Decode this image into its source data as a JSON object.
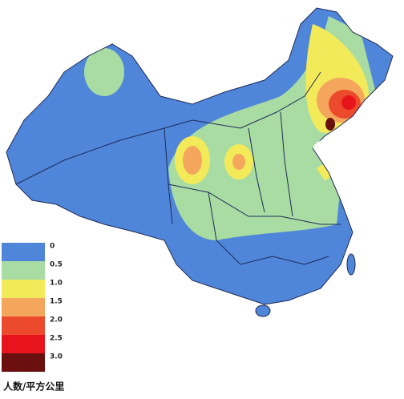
{
  "legend": {
    "title": "人数/平方公里",
    "items": [
      {
        "label": "0",
        "color": "#4f86d9"
      },
      {
        "label": "0.5",
        "color": "#a9dca3"
      },
      {
        "label": "1.0",
        "color": "#f3ea5a"
      },
      {
        "label": "1.5",
        "color": "#f3a65c"
      },
      {
        "label": "2.0",
        "color": "#ec4a2c"
      },
      {
        "label": "2.5",
        "color": "#e8141c"
      },
      {
        "label": "3.0",
        "color": "#6b0f0f"
      }
    ]
  }
}
